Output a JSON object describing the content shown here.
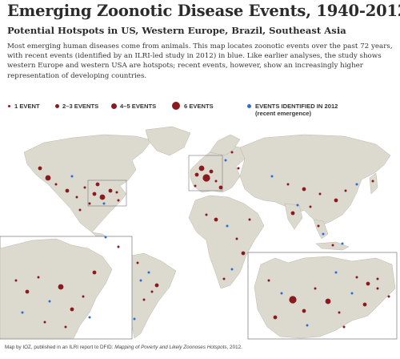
{
  "title": "Emerging Zoonotic Disease Events, 1940-2012",
  "subtitle": "Potential Hotspots in US, Western Europe, Brazil, Southeast Asia",
  "description": "Most emerging human diseases come from animals. This map locates zoonotic events over the past 72 years, with recent events (identified by an ILRI-led study in 2012) in blue. Like earlier analyses, the study shows western Europe and western USA are hotspots; recent events, however, show an increasingly higher representation of developing countries.",
  "legend": {
    "one": "1 EVENT",
    "two_three": "2–3 EVENTS",
    "four_five": "4–5 EVENTS",
    "six": "6 EVENTS",
    "recent_line1": "EVENTS IDENTIFIED IN 2012",
    "recent_line2": "(recent emergence)"
  },
  "credit": {
    "prefix": "Map by IOZ, published in an ILRI report to DFID: ",
    "report": "Mapping of Poverty and Likely Zoonoses Hotspots",
    "suffix": ", 2012."
  },
  "colors": {
    "historic_event": "#8b1a1f",
    "recent_event": "#2a6fd8",
    "land": "#dcd9cf",
    "ocean": "#ffffff"
  },
  "insets": [
    "northeast-us",
    "western-europe"
  ]
}
